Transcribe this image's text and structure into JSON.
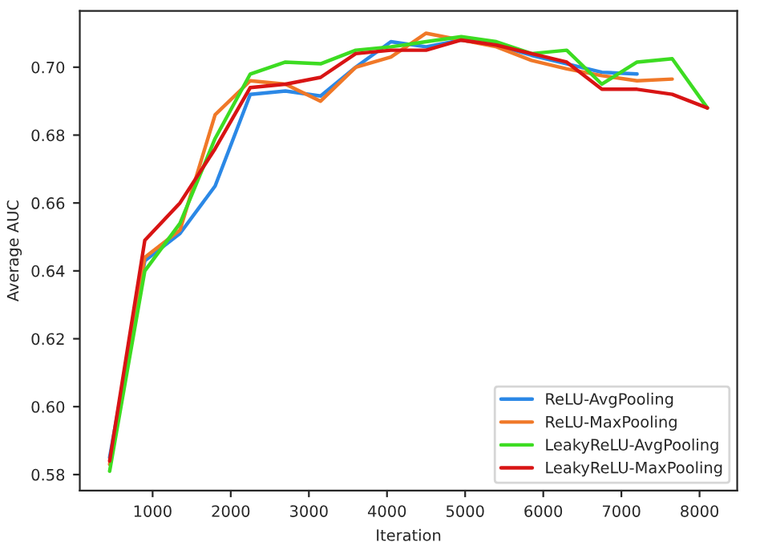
{
  "chart_data": {
    "type": "line",
    "xlabel": "Iteration",
    "ylabel": "Average AUC",
    "x": [
      450,
      900,
      1350,
      1800,
      2250,
      2700,
      3150,
      3600,
      4050,
      4500,
      4950,
      5400,
      5850,
      6300,
      6750,
      7200,
      7650,
      8100
    ],
    "series": [
      {
        "name": "ReLU-AvgPooling",
        "color": "#2b88e6",
        "values": [
          0.585,
          0.643,
          0.651,
          0.665,
          0.692,
          0.693,
          0.6915,
          0.7,
          0.7075,
          0.706,
          0.708,
          0.7065,
          0.7035,
          0.701,
          0.6985,
          0.698,
          null,
          null
        ]
      },
      {
        "name": "ReLU-MaxPooling",
        "color": "#f07828",
        "values": [
          0.583,
          0.644,
          0.652,
          0.686,
          0.696,
          0.695,
          0.69,
          0.7,
          0.703,
          0.71,
          0.708,
          0.706,
          0.702,
          0.6995,
          0.6975,
          0.696,
          0.6965,
          null
        ]
      },
      {
        "name": "LeakyReLU-AvgPooling",
        "color": "#3ddc22",
        "values": [
          0.581,
          0.64,
          0.654,
          0.679,
          0.698,
          0.7015,
          0.701,
          0.705,
          0.706,
          0.7075,
          0.709,
          0.7075,
          0.704,
          0.705,
          0.695,
          0.7015,
          0.7025,
          0.688
        ]
      },
      {
        "name": "LeakyReLU-MaxPooling",
        "color": "#d81414",
        "values": [
          0.584,
          0.649,
          0.66,
          0.676,
          0.694,
          0.695,
          0.697,
          0.704,
          0.705,
          0.705,
          0.708,
          0.7065,
          0.704,
          0.7015,
          0.6935,
          0.6935,
          0.692,
          0.688
        ]
      }
    ],
    "xlim": [
      68,
      8482
    ],
    "ylim": [
      0.5753,
      0.7166
    ],
    "xticks": [
      1000,
      2000,
      3000,
      4000,
      5000,
      6000,
      7000,
      8000
    ],
    "yticks": [
      {
        "value": 0.58,
        "label": "0.58"
      },
      {
        "value": 0.6,
        "label": "0.60"
      },
      {
        "value": 0.62,
        "label": "0.62"
      },
      {
        "value": 0.64,
        "label": "0.64"
      },
      {
        "value": 0.66,
        "label": "0.66"
      },
      {
        "value": 0.68,
        "label": "0.68"
      },
      {
        "value": 0.7,
        "label": "0.70"
      }
    ],
    "legend": "lower right",
    "grid": false
  }
}
